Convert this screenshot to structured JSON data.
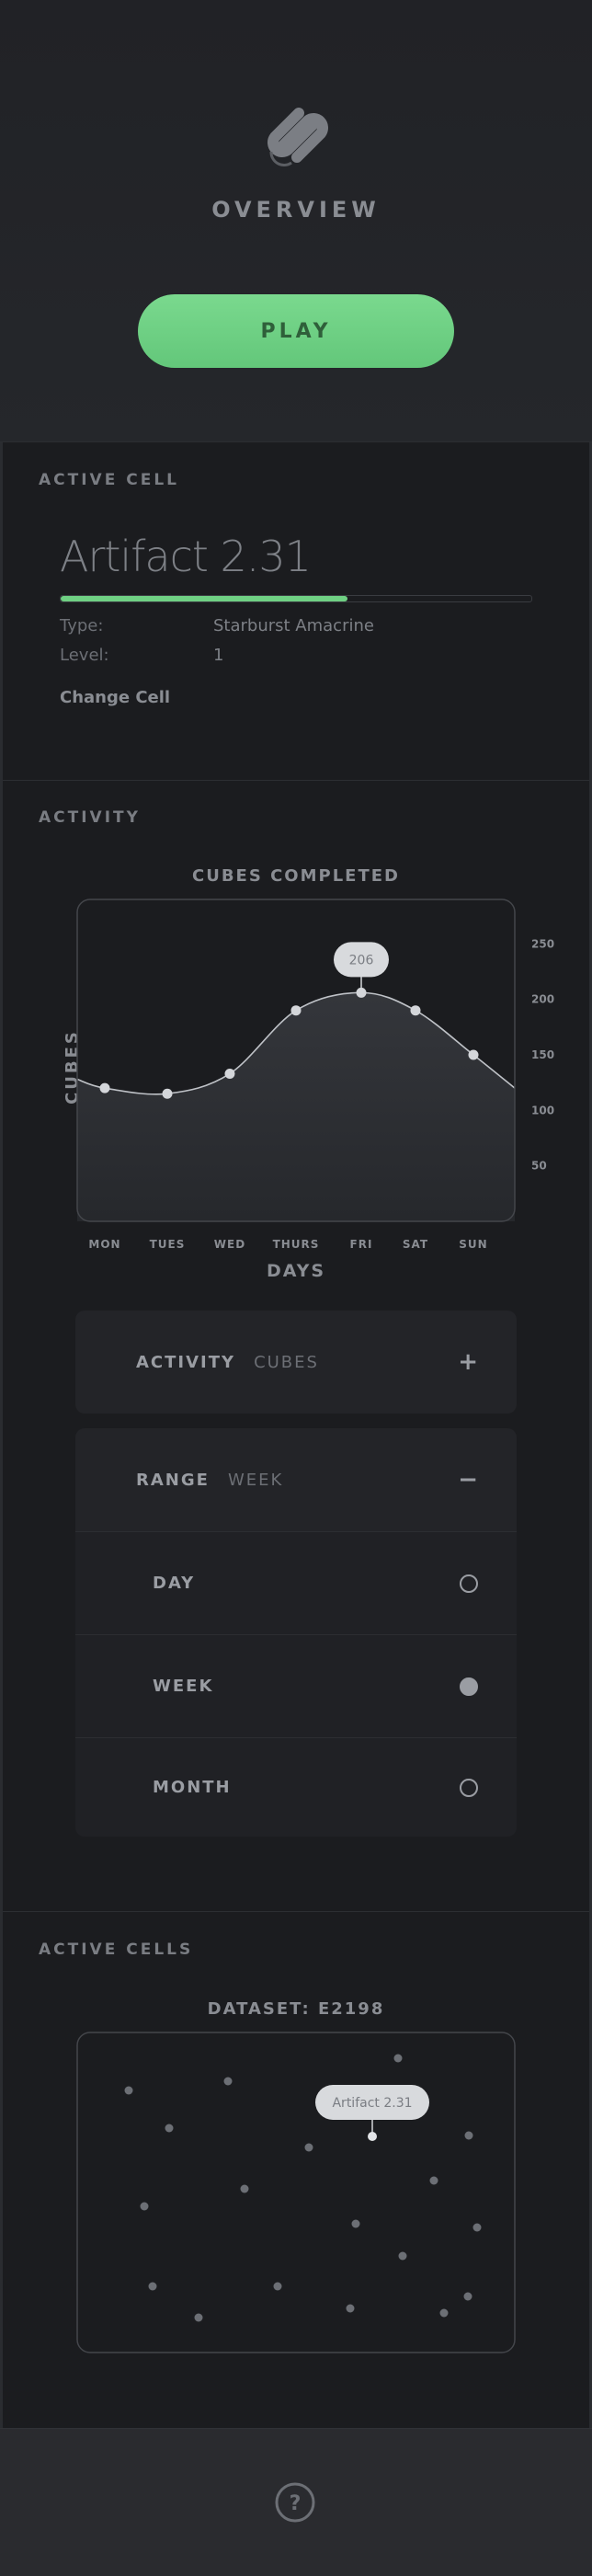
{
  "header": {
    "title": "OVERVIEW",
    "play_label": "PLAY"
  },
  "active_cell": {
    "section_label": "ACTIVE CELL",
    "name": "Artifact 2.31",
    "progress": 0.61,
    "type_label": "Type:",
    "type_value": "Starburst Amacrine",
    "level_label": "Level:",
    "level_value": "1",
    "change_label": "Change Cell"
  },
  "activity": {
    "section_label": "ACTIVITY",
    "axis_label_y": "CUBES",
    "axis_label_x": "DAYS"
  },
  "chart_data": {
    "type": "area",
    "title": "CUBES COMPLETED",
    "xlabel": "DAYS",
    "ylabel": "CUBES",
    "categories": [
      "MON",
      "TUES",
      "WED",
      "THURS",
      "FRI",
      "SAT",
      "SUN"
    ],
    "values": [
      120,
      115,
      133,
      190,
      206,
      190,
      150
    ],
    "y_ticks": [
      50,
      100,
      150,
      200,
      250
    ],
    "ylim": [
      0,
      290
    ],
    "highlight": {
      "category": "FRI",
      "label": "206"
    },
    "grid": false,
    "colors": {
      "line": "#bfc2c7",
      "fill": "#2b2d31",
      "point": "#d4d6da"
    }
  },
  "activity_panel": {
    "title": "ACTIVITY",
    "value": "CUBES",
    "toggle": "+"
  },
  "range_panel": {
    "title": "RANGE",
    "value": "WEEK",
    "toggle": "−",
    "options": [
      {
        "label": "DAY",
        "selected": false
      },
      {
        "label": "WEEK",
        "selected": true
      },
      {
        "label": "MONTH",
        "selected": false
      }
    ]
  },
  "active_cells": {
    "section_label": "ACTIVE CELLS",
    "dataset_title": "DATASET: E2198",
    "tooltip": "Artifact 2.31"
  },
  "footer": {
    "help_icon": "question-circle-icon"
  },
  "colors": {
    "accent": "#6fd083",
    "background": "#1b1c1f",
    "panel": "#232428"
  }
}
